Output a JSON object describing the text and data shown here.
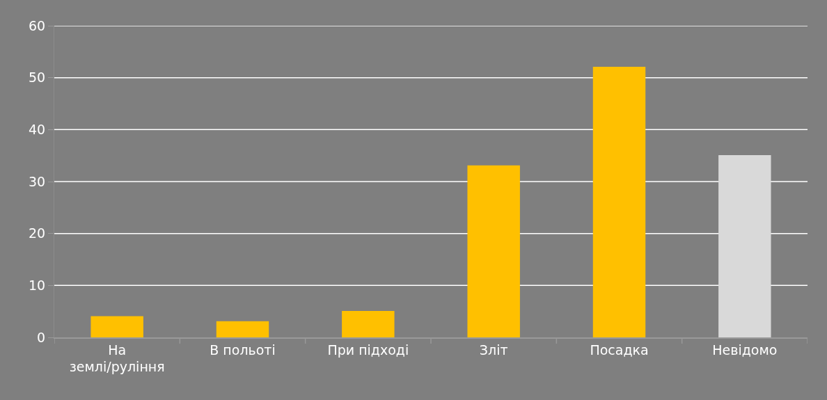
{
  "chart_data": {
    "type": "bar",
    "categories": [
      "На землі/руління",
      "В польоті",
      "При підході",
      "Зліт",
      "Посадка",
      "Невідомо"
    ],
    "values": [
      4,
      3,
      5,
      33,
      52,
      35
    ],
    "colors": [
      "#ffc000",
      "#ffc000",
      "#ffc000",
      "#ffc000",
      "#ffc000",
      "#d9d9d9"
    ],
    "ylim": [
      0,
      60
    ],
    "yticks": [
      0,
      10,
      20,
      30,
      40,
      50,
      60
    ],
    "grid": "y"
  }
}
